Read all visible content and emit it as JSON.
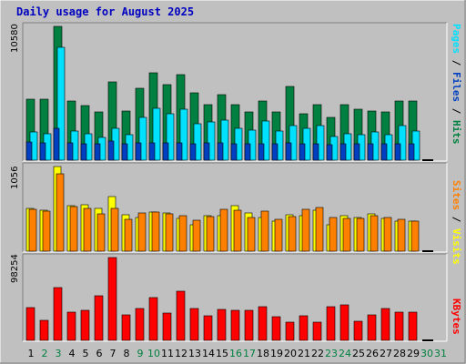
{
  "title": "Daily usage for August 2025",
  "chart_data": [
    {
      "type": "bar",
      "panel": "top",
      "ymax_label": "10580",
      "ylim": [
        0,
        10580
      ],
      "right_labels": [
        "Pages",
        "Files",
        "Hits"
      ],
      "series": [
        {
          "name": "Hits",
          "color": "#008040",
          "values": [
            4800,
            4800,
            10580,
            4700,
            4300,
            3800,
            6200,
            3900,
            5700,
            6900,
            6000,
            6800,
            5300,
            4400,
            5200,
            4400,
            3800,
            4700,
            3800,
            5800,
            3700,
            4400,
            3400,
            4400,
            4000,
            3900,
            3800,
            4700,
            4700,
            0,
            0
          ]
        },
        {
          "name": "Files",
          "color": "#00e0ff",
          "values": [
            2200,
            2100,
            8900,
            2300,
            2100,
            1800,
            2500,
            2000,
            3400,
            4100,
            3700,
            4000,
            2900,
            3000,
            3200,
            2500,
            2400,
            3100,
            2300,
            2700,
            2500,
            2700,
            1900,
            2100,
            2000,
            2200,
            2000,
            2700,
            2300,
            0,
            0
          ]
        },
        {
          "name": "Pages",
          "color": "#0040c0",
          "values": [
            1450,
            1400,
            2500,
            1400,
            1300,
            1300,
            1500,
            1300,
            1350,
            1400,
            1400,
            1350,
            1300,
            1350,
            1350,
            1300,
            1300,
            1300,
            1300,
            1350,
            1300,
            1300,
            1250,
            1300,
            1300,
            1300,
            1300,
            1300,
            1300,
            0,
            0
          ]
        }
      ]
    },
    {
      "type": "bar",
      "panel": "middle",
      "ymax_label": "1056",
      "ylim": [
        0,
        1056
      ],
      "right_labels": [
        "Sites",
        "Visits"
      ],
      "series": [
        {
          "name": "Visits",
          "color": "#ffff00",
          "values": [
            530,
            510,
            1056,
            570,
            580,
            530,
            680,
            450,
            420,
            490,
            480,
            410,
            330,
            440,
            440,
            570,
            480,
            420,
            370,
            450,
            440,
            510,
            330,
            440,
            420,
            470,
            410,
            370,
            380,
            0,
            0
          ]
        },
        {
          "name": "Sites",
          "color": "#ff8000",
          "values": [
            520,
            500,
            970,
            560,
            530,
            470,
            530,
            400,
            480,
            490,
            470,
            440,
            390,
            430,
            520,
            510,
            420,
            500,
            400,
            430,
            520,
            540,
            420,
            410,
            410,
            440,
            420,
            400,
            370,
            0,
            0
          ]
        }
      ]
    },
    {
      "type": "bar",
      "panel": "bottom",
      "ymax_label": "98254",
      "ylim": [
        0,
        98254
      ],
      "right_labels": [
        "KBytes"
      ],
      "series": [
        {
          "name": "KBytes",
          "color": "#ff0000",
          "values": [
            39000,
            24000,
            63000,
            33000,
            36000,
            53000,
            98254,
            30000,
            38000,
            51000,
            32000,
            58000,
            38000,
            29000,
            37000,
            36000,
            36000,
            40000,
            28000,
            22000,
            29000,
            22000,
            40000,
            42000,
            23000,
            30000,
            38000,
            33000,
            33000,
            0,
            0
          ]
        }
      ]
    },
    {
      "type": "table",
      "panel": "x-axis",
      "categories": [
        "1",
        "2",
        "3",
        "4",
        "5",
        "6",
        "7",
        "8",
        "9",
        "10",
        "11",
        "12",
        "13",
        "14",
        "15",
        "16",
        "17",
        "18",
        "19",
        "20",
        "21",
        "22",
        "23",
        "24",
        "25",
        "26",
        "27",
        "28",
        "29",
        "30",
        "31"
      ],
      "weekend_days": [
        2,
        3,
        9,
        10,
        16,
        17,
        23,
        24,
        30,
        31
      ],
      "weekday_color": "#000000",
      "weekend_color": "#008040"
    }
  ]
}
